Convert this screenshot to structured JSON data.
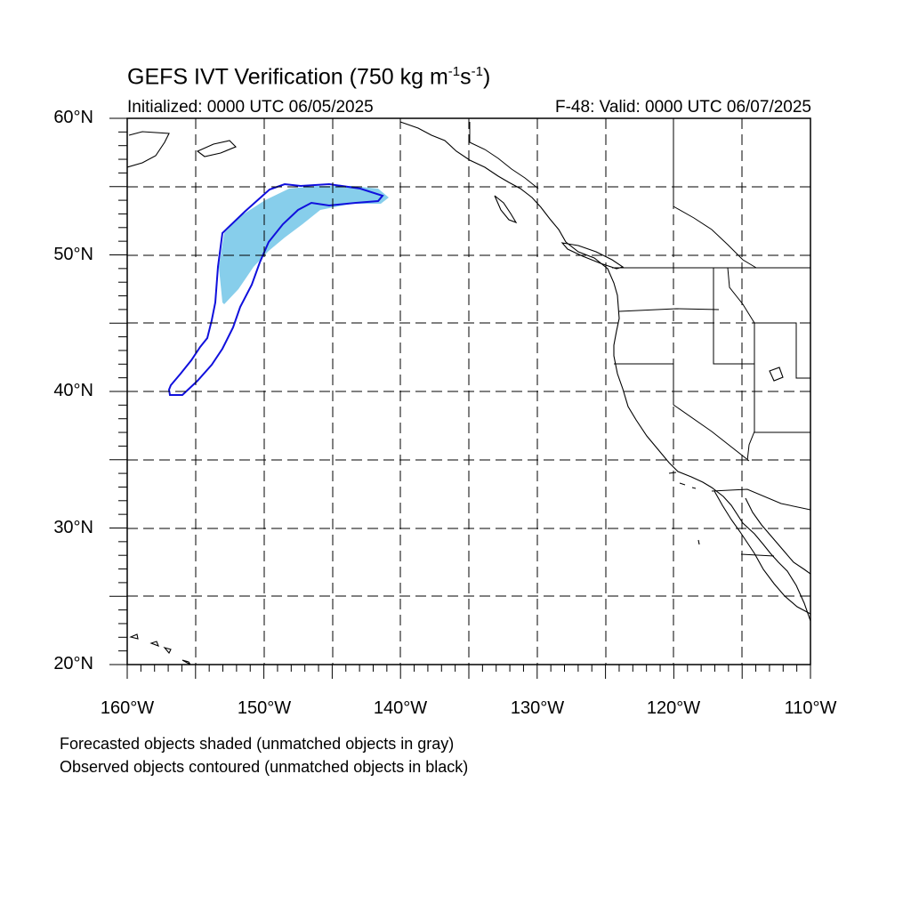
{
  "title": {
    "prefix": "GEFS IVT Verification (750 kg m",
    "exp1": "-1",
    "mid": "s",
    "exp2": "-1",
    "suffix": ")"
  },
  "initialized": "Initialized: 0000 UTC 06/05/2025",
  "valid": "F-48: Valid: 0000 UTC 06/07/2025",
  "map": {
    "lon_range": [
      -160,
      -110
    ],
    "lat_range": [
      20,
      60
    ],
    "grid_spacing_deg": 5,
    "grid_style": "dashed",
    "x_tick_labels": [
      "160°W",
      "150°W",
      "140°W",
      "130°W",
      "120°W",
      "110°W"
    ],
    "y_tick_labels": [
      "60°N",
      "50°N",
      "40°N",
      "30°N",
      "20°N"
    ],
    "forecast_color": "#87ceeb",
    "observed_color": "#1010dd"
  },
  "legend": {
    "line1": "Forecasted objects shaded (unmatched objects in gray)",
    "line2": "Observed objects contoured (unmatched objects in black)"
  }
}
